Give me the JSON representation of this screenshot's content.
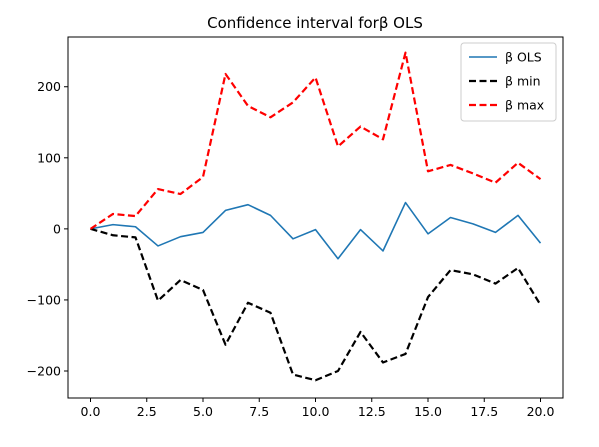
{
  "chart_data": {
    "type": "line",
    "title": "Confidence interval forβ OLS",
    "xlabel": "",
    "ylabel": "",
    "xlim": [
      -1.0,
      21.0
    ],
    "ylim": [
      -238,
      270
    ],
    "xticks": [
      0.0,
      2.5,
      5.0,
      7.5,
      10.0,
      12.5,
      15.0,
      17.5,
      20.0
    ],
    "xtick_labels": [
      "0.0",
      "2.5",
      "5.0",
      "7.5",
      "10.0",
      "12.5",
      "15.0",
      "17.5",
      "20.0"
    ],
    "yticks": [
      -200,
      -100,
      0,
      100,
      200
    ],
    "ytick_labels": [
      "−200",
      "−100",
      "0",
      "100",
      "200"
    ],
    "grid": false,
    "legend_position": "top-right",
    "x": [
      0,
      1,
      2,
      3,
      4,
      5,
      6,
      7,
      8,
      9,
      10,
      11,
      12,
      13,
      14,
      15,
      16,
      17,
      18,
      19,
      20
    ],
    "series": [
      {
        "name": "β OLS",
        "color": "#1f77b4",
        "dash": "solid",
        "values": [
          0,
          6,
          3,
          -24,
          -11,
          -5,
          26,
          34,
          19,
          -14,
          -1,
          -42,
          -1,
          -31,
          37,
          -7,
          16,
          7,
          -5,
          19,
          -20
        ]
      },
      {
        "name": "β min",
        "color": "#000000",
        "dash": "dashed",
        "values": [
          0,
          -9,
          -12,
          -101,
          -72,
          -86,
          -163,
          -104,
          -118,
          -205,
          -213,
          -200,
          -145,
          -188,
          -176,
          -96,
          -58,
          -64,
          -77,
          -55,
          -107
        ]
      },
      {
        "name": "β max",
        "color": "#ff0000",
        "dash": "dashed",
        "values": [
          0,
          21,
          18,
          56,
          49,
          73,
          218,
          173,
          157,
          178,
          213,
          116,
          144,
          126,
          248,
          81,
          90,
          78,
          65,
          93,
          70
        ]
      }
    ]
  }
}
